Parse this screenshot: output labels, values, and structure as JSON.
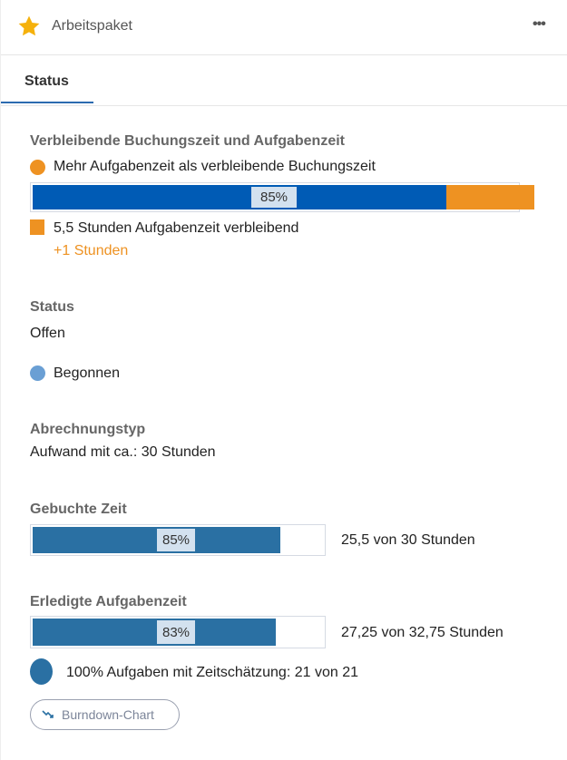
{
  "header": {
    "title": "Arbeitspaket",
    "more_label": "•••"
  },
  "tabs": [
    {
      "label": "Status",
      "active": true
    }
  ],
  "remaining": {
    "heading": "Verbleibende Buchungszeit und Aufgabenzeit",
    "warning": "Mehr Aufgabenzeit als verbleibende Buchungszeit",
    "percent_label": "85%",
    "percent": 85,
    "overflow_percent": 18,
    "task_remaining": "5,5 Stunden Aufgabenzeit verbleibend",
    "overflow": "+1 Stunden"
  },
  "status": {
    "heading": "Status",
    "value": "Offen",
    "state": "Begonnen"
  },
  "billing": {
    "heading": "Abrechnungstyp",
    "value": "Aufwand mit ca.: 30 Stunden"
  },
  "booked": {
    "heading": "Gebuchte Zeit",
    "percent_label": "85%",
    "percent": 85,
    "detail": "25,5 von 30 Stunden"
  },
  "done": {
    "heading": "Erledigte Aufgabenzeit",
    "percent_label": "83%",
    "percent": 83,
    "detail": "27,25 von 32,75 Stunden",
    "estimate": "100% Aufgaben mit Zeitschätzung: 21 von 21"
  },
  "burndown_button": "Burndown-Chart",
  "colors": {
    "blue": "#005bb5",
    "orange": "#ee9222",
    "steel": "#2a70a3",
    "light_blue": "#6a9fd4",
    "star": "#f5b10c"
  }
}
